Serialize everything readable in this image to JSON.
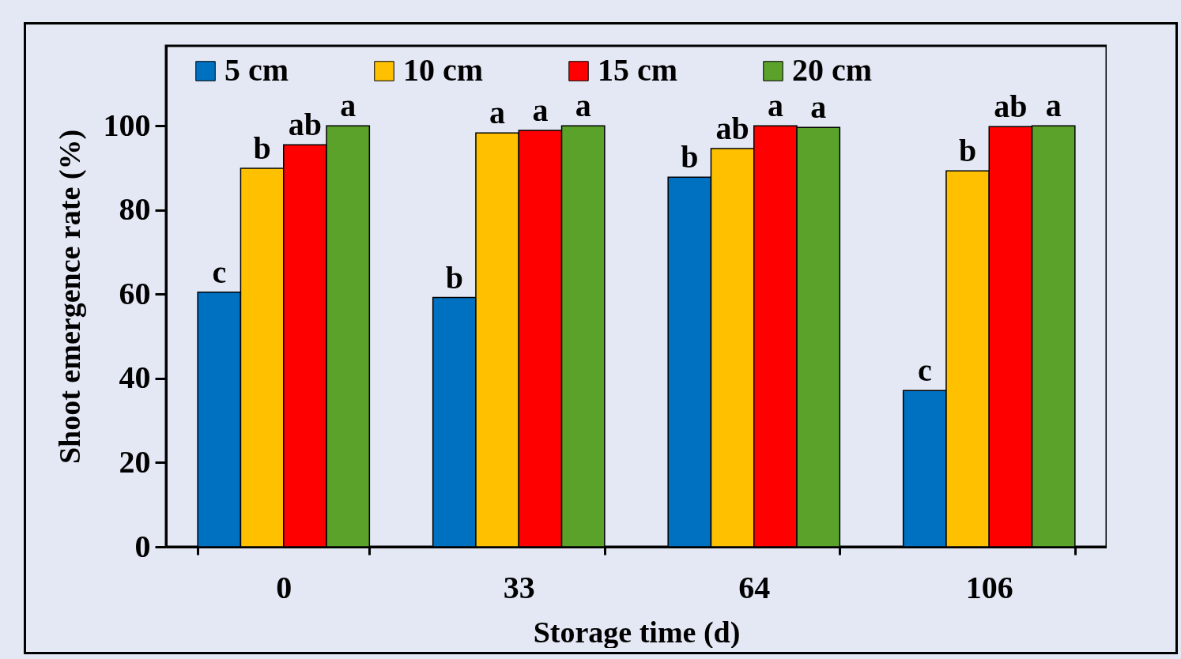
{
  "chart_data": {
    "type": "bar",
    "xlabel": "Storage time (d)",
    "ylabel": "Shoot emergence rate (%)",
    "categories": [
      "0",
      "33",
      "64",
      "106"
    ],
    "ylim": [
      0,
      119
    ],
    "yticks": [
      0,
      20,
      40,
      60,
      80,
      100
    ],
    "grid": false,
    "legend": "top",
    "series": [
      {
        "name": "5 cm",
        "color": "#0070c0",
        "values": [
          60.5,
          59.2,
          87.8,
          37.1
        ],
        "value_labels": [
          "c",
          "b",
          "b",
          "c"
        ]
      },
      {
        "name": "10 cm",
        "color": "#ffc000",
        "values": [
          89.9,
          98.3,
          94.6,
          89.3
        ],
        "value_labels": [
          "b",
          "a",
          "ab",
          "b"
        ]
      },
      {
        "name": "15 cm",
        "color": "#ff0000",
        "values": [
          95.5,
          98.9,
          100,
          99.8
        ],
        "value_labels": [
          "ab",
          "a",
          "a",
          "ab"
        ]
      },
      {
        "name": "20 cm",
        "color": "#5ba22a",
        "values": [
          100,
          100,
          99.6,
          100
        ],
        "value_labels": [
          "a",
          "a",
          "a",
          "a"
        ]
      }
    ]
  }
}
